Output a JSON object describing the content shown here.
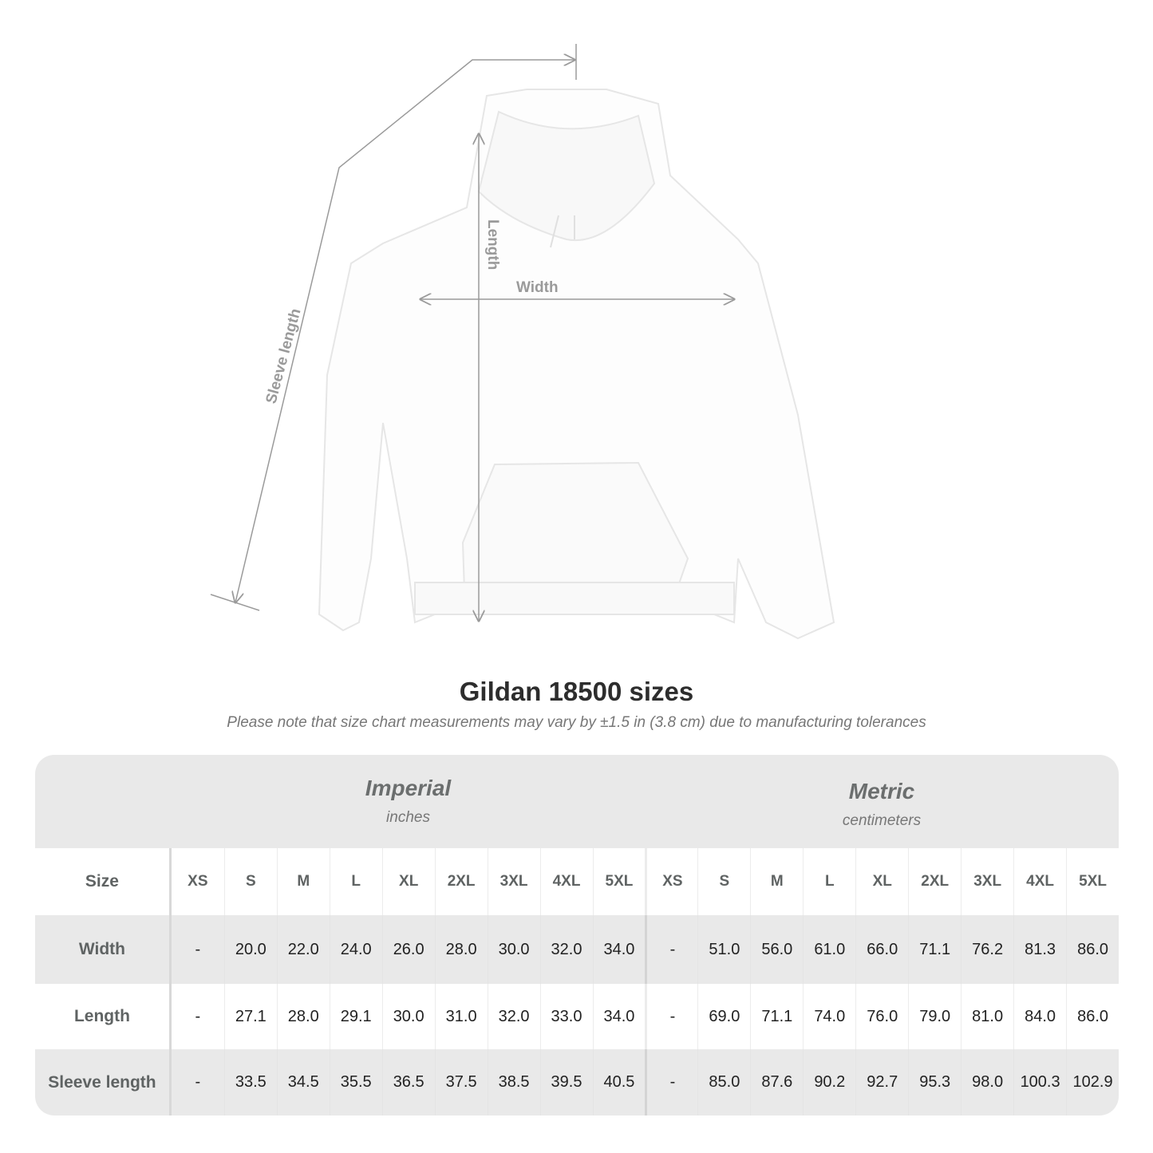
{
  "illustration": {
    "labels": {
      "sleeve": "Sleeve length",
      "length": "Length",
      "width": "Width"
    },
    "garment_color": "#ffffff",
    "line_color": "#9a9a9a"
  },
  "title": "Gildan 18500 sizes",
  "note": "Please note that size chart measurements may vary by ±1.5 in (3.8 cm) due to manufacturing tolerances",
  "table": {
    "imperial": {
      "label": "Imperial",
      "unit": "inches"
    },
    "metric": {
      "label": "Metric",
      "unit": "centimeters"
    },
    "size_label": "Size",
    "sizes": [
      "XS",
      "S",
      "M",
      "L",
      "XL",
      "2XL",
      "3XL",
      "4XL",
      "5XL"
    ],
    "rows": [
      {
        "label": "Width",
        "imperial": [
          "-",
          "20.0",
          "22.0",
          "24.0",
          "26.0",
          "28.0",
          "30.0",
          "32.0",
          "34.0"
        ],
        "metric": [
          "-",
          "51.0",
          "56.0",
          "61.0",
          "66.0",
          "71.1",
          "76.2",
          "81.3",
          "86.0"
        ]
      },
      {
        "label": "Length",
        "imperial": [
          "-",
          "27.1",
          "28.0",
          "29.1",
          "30.0",
          "31.0",
          "32.0",
          "33.0",
          "34.0"
        ],
        "metric": [
          "-",
          "69.0",
          "71.1",
          "74.0",
          "76.0",
          "79.0",
          "81.0",
          "84.0",
          "86.0"
        ]
      },
      {
        "label": "Sleeve length",
        "imperial": [
          "-",
          "33.5",
          "34.5",
          "35.5",
          "36.5",
          "37.5",
          "38.5",
          "39.5",
          "40.5"
        ],
        "metric": [
          "-",
          "85.0",
          "87.6",
          "90.2",
          "92.7",
          "95.3",
          "98.0",
          "100.3",
          "102.9"
        ]
      }
    ]
  }
}
